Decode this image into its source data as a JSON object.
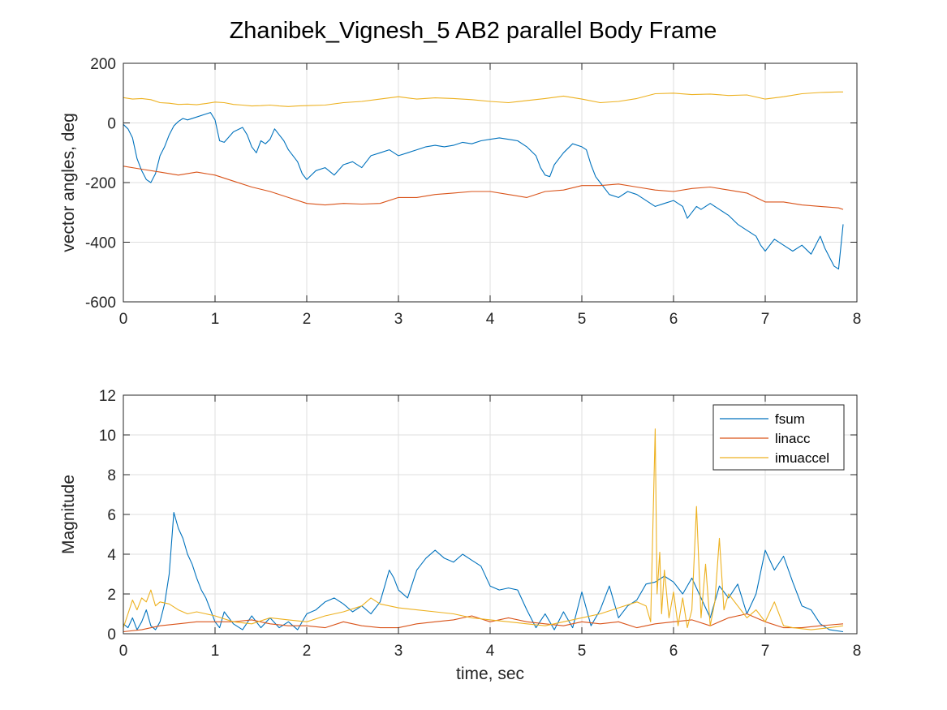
{
  "figure": {
    "title": "Zhanibek_Vignesh_5    AB2    parallel  Body Frame"
  },
  "colors": {
    "series1": "#0072BD",
    "series2": "#D95319",
    "series3": "#EDB120",
    "grid": "#DFDFDF",
    "axis": "#262626"
  },
  "chart_data": [
    {
      "type": "line",
      "title": "",
      "xlabel": "",
      "ylabel": "vector angles, deg",
      "xlim": [
        0,
        8
      ],
      "ylim": [
        -600,
        200
      ],
      "xticks": [
        0,
        1,
        2,
        3,
        4,
        5,
        6,
        7,
        8
      ],
      "yticks": [
        -600,
        -400,
        -200,
        0,
        200
      ],
      "grid": true,
      "legend": null,
      "series": [
        {
          "x": [
            0,
            0.05,
            0.1,
            0.15,
            0.2,
            0.25,
            0.3,
            0.35,
            0.4,
            0.45,
            0.5,
            0.55,
            0.6,
            0.65,
            0.7,
            0.8,
            0.9,
            0.95,
            1.0,
            1.05,
            1.1,
            1.2,
            1.3,
            1.35,
            1.4,
            1.45,
            1.5,
            1.55,
            1.6,
            1.65,
            1.7,
            1.75,
            1.8,
            1.9,
            1.95,
            2.0,
            2.1,
            2.2,
            2.3,
            2.4,
            2.5,
            2.6,
            2.7,
            2.8,
            2.9,
            3.0,
            3.1,
            3.2,
            3.3,
            3.4,
            3.5,
            3.6,
            3.7,
            3.8,
            3.9,
            4.0,
            4.1,
            4.2,
            4.3,
            4.4,
            4.5,
            4.55,
            4.6,
            4.65,
            4.7,
            4.75,
            4.8,
            4.9,
            5.0,
            5.05,
            5.1,
            5.15,
            5.2,
            5.25,
            5.3,
            5.4,
            5.5,
            5.6,
            5.7,
            5.8,
            5.9,
            6.0,
            6.1,
            6.15,
            6.2,
            6.25,
            6.3,
            6.4,
            6.5,
            6.6,
            6.7,
            6.8,
            6.9,
            6.95,
            7.0,
            7.1,
            7.2,
            7.3,
            7.4,
            7.5,
            7.6,
            7.65,
            7.7,
            7.75,
            7.8,
            7.85
          ],
          "y": [
            -5,
            -20,
            -50,
            -120,
            -160,
            -190,
            -200,
            -170,
            -110,
            -80,
            -40,
            -10,
            5,
            15,
            10,
            20,
            30,
            35,
            10,
            -60,
            -65,
            -30,
            -15,
            -40,
            -80,
            -100,
            -60,
            -70,
            -55,
            -20,
            -40,
            -60,
            -90,
            -130,
            -170,
            -190,
            -160,
            -150,
            -175,
            -140,
            -130,
            -150,
            -110,
            -100,
            -90,
            -110,
            -100,
            -90,
            -80,
            -75,
            -80,
            -75,
            -65,
            -70,
            -60,
            -55,
            -50,
            -55,
            -60,
            -80,
            -110,
            -150,
            -175,
            -180,
            -140,
            -120,
            -100,
            -70,
            -80,
            -90,
            -140,
            -180,
            -200,
            -220,
            -240,
            -250,
            -230,
            -240,
            -260,
            -280,
            -270,
            -260,
            -280,
            -320,
            -300,
            -280,
            -290,
            -270,
            -290,
            -310,
            -340,
            -360,
            -380,
            -410,
            -430,
            -390,
            -410,
            -430,
            -410,
            -440,
            -380,
            -420,
            -450,
            -480,
            -490,
            -340
          ]
        },
        {
          "x": [
            0,
            0.2,
            0.4,
            0.6,
            0.8,
            1.0,
            1.2,
            1.4,
            1.6,
            1.8,
            2.0,
            2.2,
            2.4,
            2.6,
            2.8,
            3.0,
            3.2,
            3.4,
            3.6,
            3.8,
            4.0,
            4.2,
            4.4,
            4.6,
            4.8,
            5.0,
            5.2,
            5.4,
            5.6,
            5.8,
            6.0,
            6.2,
            6.4,
            6.6,
            6.8,
            7.0,
            7.2,
            7.4,
            7.6,
            7.8,
            7.85
          ],
          "y": [
            -145,
            -155,
            -165,
            -175,
            -165,
            -175,
            -195,
            -215,
            -230,
            -250,
            -270,
            -275,
            -270,
            -272,
            -270,
            -250,
            -250,
            -240,
            -235,
            -230,
            -230,
            -240,
            -250,
            -230,
            -225,
            -210,
            -210,
            -205,
            -215,
            -225,
            -230,
            -220,
            -215,
            -225,
            -235,
            -265,
            -265,
            -275,
            -280,
            -285,
            -290
          ]
        },
        {
          "x": [
            0,
            0.1,
            0.2,
            0.3,
            0.4,
            0.5,
            0.6,
            0.7,
            0.8,
            0.9,
            1.0,
            1.1,
            1.2,
            1.3,
            1.4,
            1.5,
            1.6,
            1.7,
            1.8,
            1.9,
            2.0,
            2.2,
            2.4,
            2.6,
            2.8,
            3.0,
            3.2,
            3.4,
            3.6,
            3.8,
            4.0,
            4.2,
            4.4,
            4.6,
            4.8,
            5.0,
            5.2,
            5.4,
            5.6,
            5.8,
            6.0,
            6.2,
            6.4,
            6.6,
            6.8,
            7.0,
            7.2,
            7.4,
            7.6,
            7.8,
            7.85
          ],
          "y": [
            85,
            80,
            82,
            78,
            68,
            66,
            62,
            63,
            61,
            65,
            70,
            68,
            62,
            60,
            57,
            58,
            60,
            57,
            55,
            57,
            58,
            60,
            68,
            72,
            80,
            88,
            80,
            84,
            82,
            78,
            72,
            68,
            75,
            82,
            90,
            80,
            68,
            72,
            82,
            98,
            100,
            95,
            97,
            92,
            94,
            80,
            88,
            98,
            102,
            104,
            104
          ]
        }
      ]
    },
    {
      "type": "line",
      "title": "",
      "xlabel": "time, sec",
      "ylabel": "Magnitude",
      "xlim": [
        0,
        8
      ],
      "ylim": [
        0,
        12
      ],
      "xticks": [
        0,
        1,
        2,
        3,
        4,
        5,
        6,
        7,
        8
      ],
      "yticks": [
        0,
        2,
        4,
        6,
        8,
        10,
        12
      ],
      "grid": true,
      "legend": "top-right",
      "series": [
        {
          "name": "fsum",
          "x": [
            0,
            0.05,
            0.1,
            0.15,
            0.2,
            0.25,
            0.3,
            0.35,
            0.4,
            0.45,
            0.5,
            0.55,
            0.6,
            0.65,
            0.7,
            0.75,
            0.8,
            0.85,
            0.9,
            0.95,
            1.0,
            1.05,
            1.1,
            1.2,
            1.3,
            1.4,
            1.5,
            1.6,
            1.7,
            1.8,
            1.9,
            2.0,
            2.1,
            2.2,
            2.3,
            2.4,
            2.5,
            2.6,
            2.7,
            2.8,
            2.85,
            2.9,
            2.95,
            3.0,
            3.1,
            3.2,
            3.3,
            3.4,
            3.5,
            3.6,
            3.7,
            3.8,
            3.9,
            4.0,
            4.1,
            4.2,
            4.3,
            4.4,
            4.5,
            4.6,
            4.7,
            4.8,
            4.9,
            5.0,
            5.1,
            5.2,
            5.3,
            5.4,
            5.5,
            5.6,
            5.7,
            5.8,
            5.9,
            6.0,
            6.1,
            6.2,
            6.3,
            6.4,
            6.5,
            6.6,
            6.7,
            6.8,
            6.9,
            7.0,
            7.1,
            7.2,
            7.3,
            7.4,
            7.5,
            7.6,
            7.7,
            7.85
          ],
          "y": [
            0.5,
            0.3,
            0.8,
            0.2,
            0.6,
            1.2,
            0.4,
            0.2,
            0.6,
            1.5,
            3.0,
            6.1,
            5.3,
            4.8,
            4.0,
            3.5,
            2.8,
            2.2,
            1.8,
            1.2,
            0.6,
            0.3,
            1.1,
            0.5,
            0.2,
            0.9,
            0.3,
            0.8,
            0.3,
            0.6,
            0.2,
            1.0,
            1.2,
            1.6,
            1.8,
            1.5,
            1.1,
            1.4,
            1.0,
            1.6,
            2.4,
            3.2,
            2.8,
            2.2,
            1.8,
            3.2,
            3.8,
            4.2,
            3.8,
            3.6,
            4.0,
            3.7,
            3.4,
            2.4,
            2.2,
            2.3,
            2.2,
            1.2,
            0.3,
            1.0,
            0.2,
            1.1,
            0.3,
            2.1,
            0.4,
            1.2,
            2.4,
            0.8,
            1.4,
            1.7,
            2.5,
            2.6,
            2.9,
            2.6,
            2.0,
            2.8,
            1.8,
            0.8,
            2.4,
            1.8,
            2.5,
            1.0,
            2.0,
            4.2,
            3.2,
            3.9,
            2.6,
            1.4,
            1.2,
            0.5,
            0.2,
            0.1
          ]
        },
        {
          "name": "linacc",
          "x": [
            0,
            0.2,
            0.4,
            0.6,
            0.8,
            1.0,
            1.2,
            1.4,
            1.6,
            1.8,
            2.0,
            2.2,
            2.4,
            2.6,
            2.8,
            3.0,
            3.2,
            3.4,
            3.6,
            3.8,
            4.0,
            4.2,
            4.4,
            4.6,
            4.8,
            5.0,
            5.2,
            5.4,
            5.6,
            5.8,
            6.0,
            6.2,
            6.4,
            6.6,
            6.8,
            7.0,
            7.2,
            7.4,
            7.6,
            7.85
          ],
          "y": [
            0.1,
            0.2,
            0.4,
            0.5,
            0.6,
            0.6,
            0.6,
            0.7,
            0.5,
            0.4,
            0.4,
            0.3,
            0.6,
            0.4,
            0.3,
            0.3,
            0.5,
            0.6,
            0.7,
            0.9,
            0.6,
            0.8,
            0.6,
            0.5,
            0.4,
            0.6,
            0.5,
            0.6,
            0.3,
            0.5,
            0.6,
            0.7,
            0.4,
            0.8,
            1.0,
            0.6,
            0.3,
            0.3,
            0.4,
            0.5
          ]
        },
        {
          "name": "imuaccel",
          "x": [
            0,
            0.05,
            0.1,
            0.15,
            0.2,
            0.25,
            0.3,
            0.35,
            0.4,
            0.5,
            0.6,
            0.7,
            0.8,
            0.9,
            1.0,
            1.2,
            1.4,
            1.6,
            1.8,
            2.0,
            2.2,
            2.4,
            2.6,
            2.7,
            2.8,
            3.0,
            3.2,
            3.4,
            3.6,
            3.8,
            4.0,
            4.2,
            4.4,
            4.6,
            4.8,
            5.0,
            5.2,
            5.4,
            5.6,
            5.7,
            5.75,
            5.8,
            5.82,
            5.85,
            5.87,
            5.9,
            5.95,
            6.0,
            6.05,
            6.1,
            6.15,
            6.2,
            6.25,
            6.3,
            6.35,
            6.4,
            6.45,
            6.5,
            6.55,
            6.6,
            6.7,
            6.8,
            6.9,
            7.0,
            7.1,
            7.2,
            7.3,
            7.5,
            7.7,
            7.85
          ],
          "y": [
            0.3,
            1.0,
            1.7,
            1.2,
            1.8,
            1.6,
            2.2,
            1.4,
            1.6,
            1.5,
            1.2,
            1.0,
            1.1,
            1.0,
            0.9,
            0.6,
            0.5,
            0.8,
            0.7,
            0.6,
            0.9,
            1.1,
            1.4,
            1.8,
            1.5,
            1.3,
            1.2,
            1.1,
            1.0,
            0.8,
            0.7,
            0.6,
            0.5,
            0.4,
            0.6,
            0.8,
            1.0,
            1.3,
            1.6,
            1.4,
            0.6,
            10.3,
            2.0,
            4.1,
            1.0,
            3.2,
            0.8,
            2.1,
            0.4,
            1.8,
            0.3,
            1.2,
            6.4,
            0.8,
            3.5,
            0.4,
            1.6,
            4.8,
            1.2,
            2.0,
            1.4,
            0.8,
            1.2,
            0.6,
            1.6,
            0.4,
            0.3,
            0.2,
            0.3,
            0.4
          ]
        }
      ]
    }
  ]
}
